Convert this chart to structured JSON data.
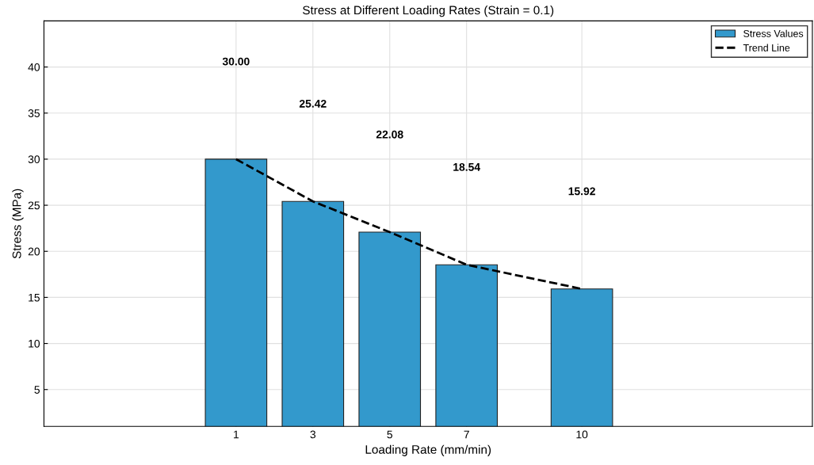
{
  "chart_data": {
    "type": "bar",
    "title": "Stress at Different Loading Rates (Strain = 0.1)",
    "xlabel": "Loading Rate (mm/min)",
    "ylabel": "Stress (MPa)",
    "x": [
      1,
      3,
      5,
      7,
      10
    ],
    "series": [
      {
        "name": "Stress Values",
        "color": "#3399cc",
        "values": [
          30.0,
          25.42,
          22.08,
          18.54,
          15.92
        ]
      },
      {
        "name": "Trend Line",
        "type": "line",
        "color": "#000000",
        "line_style": "dashed",
        "x": [
          1,
          3,
          5,
          7,
          10
        ],
        "values": [
          30.0,
          25.42,
          22.08,
          18.54,
          15.92
        ]
      }
    ],
    "value_labels": [
      "30.00",
      "25.42",
      "22.08",
      "18.54",
      "15.92"
    ],
    "xlim": [
      -4,
      16
    ],
    "xticks": [
      1,
      3,
      5,
      7,
      10
    ],
    "ylim": [
      1,
      45
    ],
    "yticks": [
      5,
      10,
      15,
      20,
      25,
      30,
      35,
      40
    ],
    "grid": true,
    "legend": "top right"
  }
}
